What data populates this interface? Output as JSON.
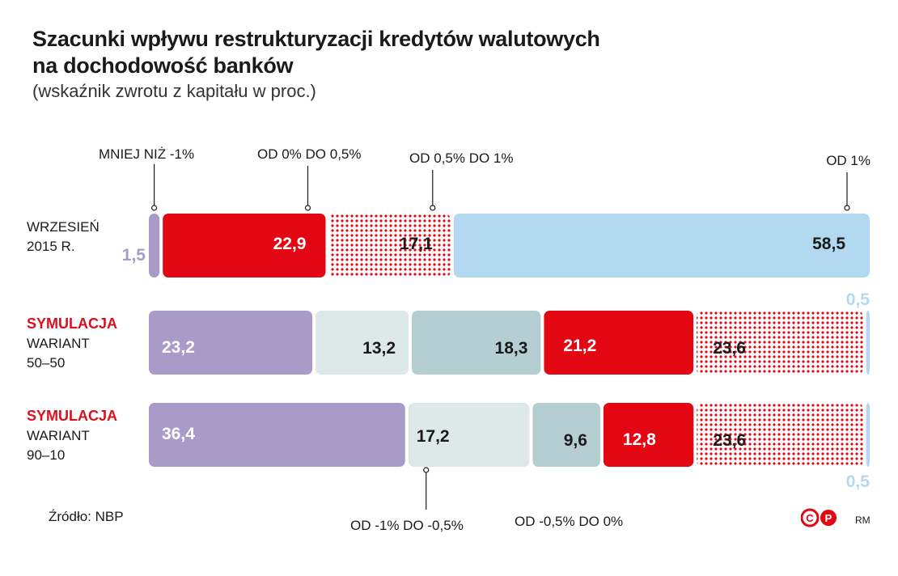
{
  "chart_data": {
    "type": "bar",
    "stacked": true,
    "orientation": "horizontal",
    "title": "Szacunki wpływu restrukturyzacji kredytów walutowych na dochodowość banków",
    "title_line1": "Szacunki wpływu restrukturyzacji kredytów walutowych",
    "title_line2": "na dochodowość banków",
    "subtitle": "(wskaźnik zwrotu z kapitału w proc.)",
    "categories_legend": [
      {
        "key": "lt_minus1",
        "label": "MNIEJ NIŻ -1%",
        "color": "#a99bc8",
        "pattern": "solid"
      },
      {
        "key": "m1_m05",
        "label": "OD -1% DO -0,5%",
        "color": "#dde8e9",
        "pattern": "solid"
      },
      {
        "key": "m05_0",
        "label": "OD -0,5% DO 0%",
        "color": "#b5ced2",
        "pattern": "solid"
      },
      {
        "key": "0_05",
        "label": "OD 0% DO 0,5%",
        "color": "#e30613",
        "pattern": "solid"
      },
      {
        "key": "05_1",
        "label": "OD 0,5% DO 1%",
        "color": "#e30613",
        "pattern": "dots"
      },
      {
        "key": "gt1",
        "label": "OD 1%",
        "color": "#b3d9f0",
        "pattern": "solid"
      }
    ],
    "rows": [
      {
        "highlight": "",
        "label_lines": [
          "WRZESIEŃ",
          "2015 R."
        ],
        "segments": [
          {
            "key": "lt_minus1",
            "value": 1.5,
            "label": "1,5"
          },
          {
            "key": "0_05",
            "value": 22.9,
            "label": "22,9"
          },
          {
            "key": "05_1",
            "value": 17.1,
            "label": "17,1"
          },
          {
            "key": "gt1",
            "value": 58.5,
            "label": "58,5"
          }
        ]
      },
      {
        "highlight": "SYMULACJA",
        "label_lines": [
          "WARIANT",
          "50–50"
        ],
        "segments": [
          {
            "key": "lt_minus1",
            "value": 23.2,
            "label": "23,2"
          },
          {
            "key": "m1_m05",
            "value": 13.2,
            "label": "13,2"
          },
          {
            "key": "m05_0",
            "value": 18.3,
            "label": "18,3"
          },
          {
            "key": "0_05",
            "value": 21.2,
            "label": "21,2"
          },
          {
            "key": "05_1",
            "value": 23.6,
            "label": "23,6"
          },
          {
            "key": "gt1",
            "value": 0.5,
            "label": "0,5"
          }
        ]
      },
      {
        "highlight": "SYMULACJA",
        "label_lines": [
          "WARIANT",
          "90–10"
        ],
        "segments": [
          {
            "key": "lt_minus1",
            "value": 36.4,
            "label": "36,4"
          },
          {
            "key": "m1_m05",
            "value": 17.2,
            "label": "17,2"
          },
          {
            "key": "m05_0",
            "value": 9.6,
            "label": "9,6"
          },
          {
            "key": "0_05",
            "value": 12.8,
            "label": "12,8"
          },
          {
            "key": "05_1",
            "value": 23.6,
            "label": "23,6"
          },
          {
            "key": "gt1",
            "value": 0.5,
            "label": "0,5"
          }
        ]
      }
    ],
    "unit": "%",
    "total": 100
  },
  "source": "Źródło: NBP",
  "author": "RM",
  "logo_letters": [
    "C",
    "P"
  ]
}
